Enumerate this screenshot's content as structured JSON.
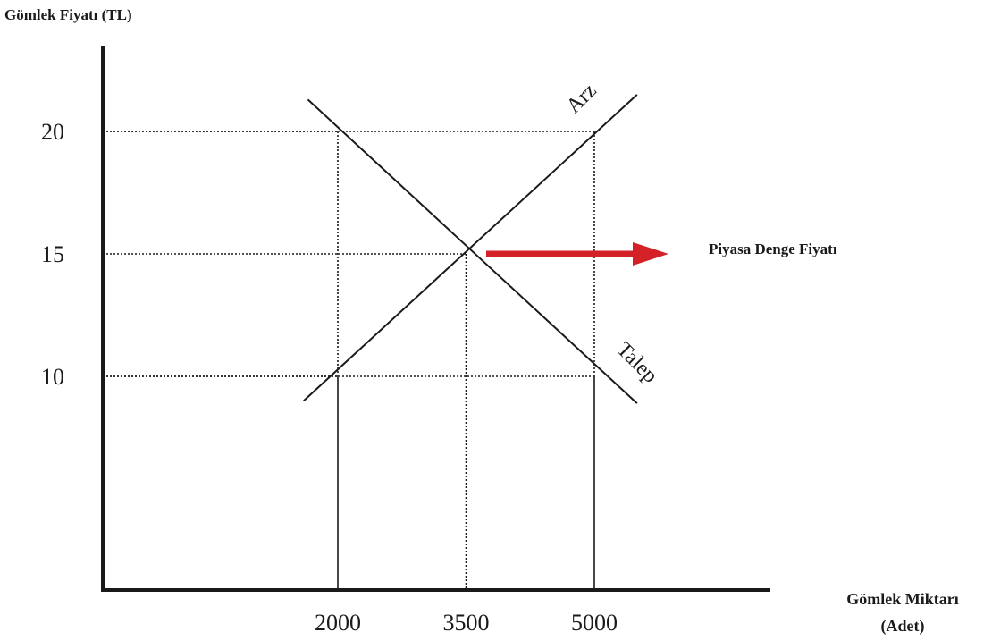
{
  "chart_data": {
    "type": "line",
    "ylabel": "Gömlek Fiyatı (TL)",
    "xlabel_lines": [
      "Gömlek Miktarı",
      "(Adet)"
    ],
    "x_ticks": [
      2000,
      3500,
      5000
    ],
    "y_ticks": [
      10,
      15,
      20
    ],
    "x_tick_labels": [
      "2000",
      "3500",
      "5000"
    ],
    "y_tick_labels": [
      "10",
      "15",
      "20"
    ],
    "series": [
      {
        "name": "Arz",
        "points": [
          [
            1600,
            9.0
          ],
          [
            5500,
            21.5
          ]
        ]
      },
      {
        "name": "Talep",
        "points": [
          [
            1650,
            21.3
          ],
          [
            5500,
            8.9
          ]
        ]
      }
    ],
    "guides": [
      {
        "x": 2000,
        "y": 20
      },
      {
        "x": 5000,
        "y": 20
      },
      {
        "x": 3500,
        "y": 15
      },
      {
        "x": 2000,
        "y": 10
      },
      {
        "x": 5000,
        "y": 10
      }
    ],
    "equilibrium": {
      "x": 3500,
      "y": 15
    },
    "annotation": "Piyasa Denge Fiyatı",
    "colors": {
      "axis": "#1a1a1a",
      "curve": "#1a1a1a",
      "arrow": "#d42027"
    }
  }
}
